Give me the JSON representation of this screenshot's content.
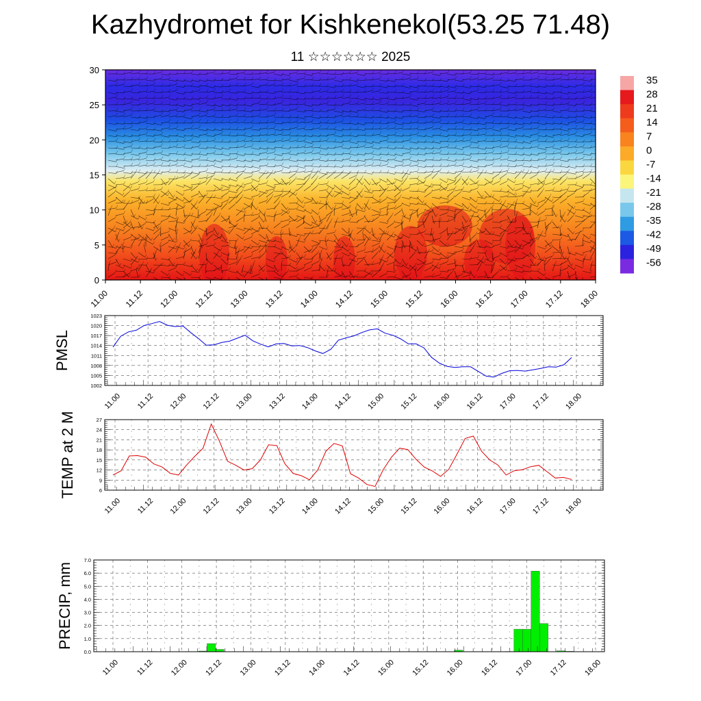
{
  "header": {
    "title": "Kazhydromet for Kishkenekol(53.25 71.48)",
    "subtitle": "11 ☆☆☆☆☆☆ 2025"
  },
  "colors": {
    "pmsl_line": "#0000dd",
    "temp_line": "#dd0000",
    "precip_bar": "#00ee00",
    "grid": "#555555",
    "axis": "#000000"
  },
  "chart_data": [
    {
      "id": "cross_section",
      "type": "heatmap",
      "title": "",
      "ylabel": "",
      "ylim": [
        0,
        30
      ],
      "yticks": [
        0,
        5,
        10,
        15,
        20,
        25,
        30
      ],
      "xticks": [
        "11.00",
        "11.12",
        "12.00",
        "12.12",
        "13.00",
        "13.12",
        "14.00",
        "14.12",
        "15.00",
        "15.12",
        "16.00",
        "16.12",
        "17.00",
        "17.12",
        "18.00"
      ],
      "overlay": "wind barbs",
      "colorbar_labels": [
        "35",
        "28",
        "21",
        "14",
        "7",
        "0",
        "-7",
        "-14",
        "-21",
        "-28",
        "-35",
        "-42",
        "-49",
        "-56"
      ],
      "colorbar_colors": [
        "#f7a6a6",
        "#e6191d",
        "#ef3b1d",
        "#f55d1c",
        "#f8831f",
        "#fbab27",
        "#fbd73f",
        "#fbf57c",
        "#c6e6ef",
        "#79c8ec",
        "#2e9be3",
        "#1c59e4",
        "#2b22e0",
        "#7a2be2"
      ]
    },
    {
      "id": "pmsl",
      "type": "line",
      "ylabel": "PMSL",
      "ylim": [
        1002,
        1023
      ],
      "yticks": [
        1002,
        1005,
        1008,
        1011,
        1014,
        1017,
        1020,
        1023
      ],
      "xticks": [
        "11.00",
        "11.12",
        "12.00",
        "12.12",
        "13.00",
        "13.12",
        "14.00",
        "14.12",
        "15.00",
        "15.12",
        "16.00",
        "16.12",
        "17.00",
        "17.12",
        "18.00"
      ],
      "series": [
        {
          "values": [
            1013.5,
            1016.8,
            1018.1,
            1018.6,
            1020.0,
            1020.6,
            1021.2,
            1020.1,
            1019.7,
            1019.9,
            1017.9,
            1016.1,
            1014.1,
            1014.2,
            1014.9,
            1015.3,
            1016.2,
            1017.1,
            1015.4,
            1014.4,
            1013.6,
            1014.5,
            1014.6,
            1013.9,
            1014.0,
            1013.4,
            1012.4,
            1011.6,
            1012.8,
            1015.6,
            1016.3,
            1016.9,
            1017.9,
            1018.7,
            1019.0,
            1017.7,
            1017.1,
            1016.0,
            1014.5,
            1014.5,
            1013.3,
            1010.4,
            1008.7,
            1007.7,
            1007.4,
            1007.6,
            1007.6,
            1006.2,
            1004.8,
            1004.5,
            1005.6,
            1006.4,
            1006.5,
            1006.3,
            1006.7,
            1007.1,
            1007.6,
            1007.5,
            1008.2,
            1010.4
          ],
          "color": "#0000dd"
        }
      ]
    },
    {
      "id": "temp2m",
      "type": "line",
      "ylabel": "TEMP at 2 M",
      "ylim": [
        6,
        27
      ],
      "yticks": [
        6,
        9,
        12,
        15,
        18,
        21,
        24,
        27
      ],
      "xticks": [
        "11.00",
        "11.12",
        "12.00",
        "12.12",
        "13.00",
        "13.12",
        "14.00",
        "14.12",
        "15.00",
        "15.12",
        "16.00",
        "16.12",
        "17.00",
        "17.12",
        "18.00"
      ],
      "series": [
        {
          "values": [
            10.5,
            11.8,
            16.2,
            16.3,
            15.8,
            13.8,
            12.9,
            11.0,
            10.5,
            13.5,
            16.1,
            18.5,
            25.7,
            20.6,
            14.6,
            13.4,
            12.0,
            12.4,
            15.0,
            19.5,
            19.3,
            13.8,
            11.0,
            10.3,
            9.1,
            12.0,
            17.6,
            19.9,
            19.2,
            10.9,
            9.6,
            7.7,
            7.1,
            12.1,
            15.8,
            18.5,
            18.1,
            15.2,
            12.9,
            11.7,
            10.1,
            12.2,
            16.7,
            21.4,
            22.1,
            17.6,
            15.0,
            13.5,
            10.5,
            11.8,
            12.1,
            13.0,
            13.4,
            11.5,
            9.6,
            9.8,
            9.2
          ],
          "color": "#dd0000"
        }
      ]
    },
    {
      "id": "precip",
      "type": "bar",
      "ylabel": "PRECIP, mm",
      "ylim": [
        0,
        7
      ],
      "yticks": [
        "0.0",
        "1.0",
        "2.0",
        "3.0",
        "4.0",
        "5.0",
        "6.0",
        "7.0"
      ],
      "xticks": [
        "11.00",
        "11.12",
        "12.00",
        "12.12",
        "13.00",
        "13.12",
        "14.00",
        "14.12",
        "15.00",
        "15.12",
        "16.00",
        "16.12",
        "17.00",
        "17.12",
        "18.00"
      ],
      "series": [
        {
          "values": [
            0,
            0,
            0,
            0,
            0,
            0.02,
            0,
            0,
            0,
            0,
            0,
            0.05,
            0.62,
            0.18,
            0,
            0,
            0,
            0,
            0,
            0,
            0,
            0,
            0,
            0,
            0,
            0,
            0,
            0,
            0,
            0,
            0,
            0,
            0,
            0,
            0,
            0,
            0,
            0,
            0,
            0,
            0,
            0.12,
            0,
            0,
            0,
            0,
            0,
            0.02,
            1.72,
            1.72,
            6.15,
            2.15,
            0,
            0.07,
            0.03,
            0
          ],
          "color": "#00ee00"
        }
      ]
    }
  ]
}
